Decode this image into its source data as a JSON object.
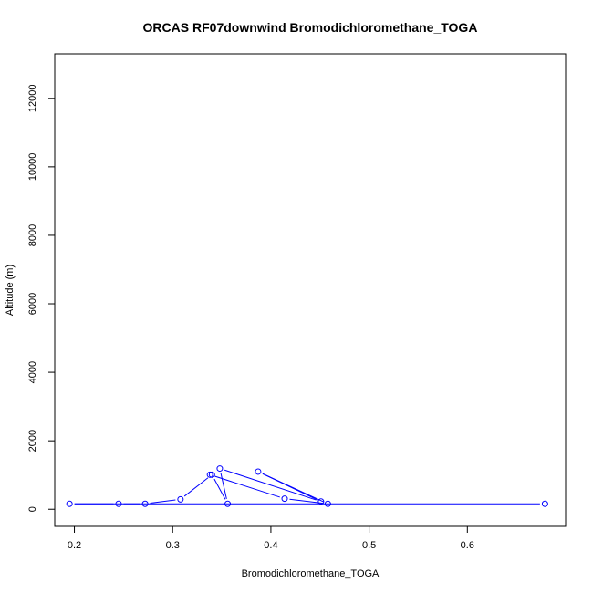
{
  "chart_data": {
    "type": "line",
    "title": "ORCAS RF07downwind Bromodichloromethane_TOGA",
    "xlabel": "Bromodichloromethane_TOGA",
    "ylabel": "Altitude (m)",
    "xlim": [
      0.18,
      0.7
    ],
    "ylim": [
      -500,
      13300
    ],
    "x_ticks": [
      0.2,
      0.3,
      0.4,
      0.5,
      0.6
    ],
    "y_ticks": [
      0,
      2000,
      4000,
      6000,
      8000,
      10000,
      12000
    ],
    "grid": false,
    "legend": "none",
    "marker": "open-circle",
    "series": [
      {
        "color": "#0000ff",
        "points": [
          {
            "x": 0.679,
            "y": 160
          },
          {
            "x": 0.195,
            "y": 160
          },
          {
            "x": 0.245,
            "y": 160
          },
          {
            "x": 0.272,
            "y": 160
          },
          {
            "x": 0.308,
            "y": 290
          },
          {
            "x": 0.34,
            "y": 1010
          },
          {
            "x": 0.356,
            "y": 160
          },
          {
            "x": 0.348,
            "y": 1190
          },
          {
            "x": 0.451,
            "y": 225
          },
          {
            "x": 0.387,
            "y": 1100
          },
          {
            "x": 0.458,
            "y": 160
          },
          {
            "x": 0.414,
            "y": 310
          },
          {
            "x": 0.338,
            "y": 1010
          }
        ]
      }
    ]
  }
}
